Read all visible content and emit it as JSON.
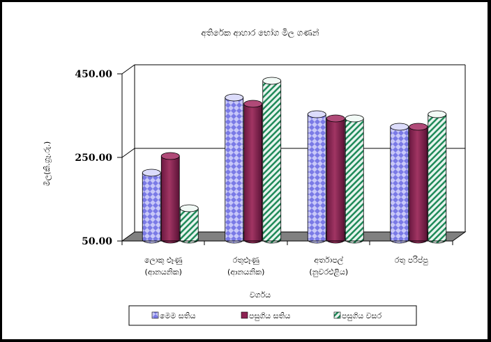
{
  "chart_data": {
    "type": "bar",
    "title": "අතිරේක ආහාර භෝග මිල ගණන්",
    "xlabel": "වර්ගය",
    "ylabel": "මිල(කි.ග්‍රෑ.රු.)",
    "ylim": [
      50,
      450
    ],
    "yticks": [
      "450.00",
      "250.00",
      "50.00"
    ],
    "grid": true,
    "legend_position": "bottom",
    "categories": [
      [
        "ලොකු ළූණු",
        "(ආනයනික)"
      ],
      [
        "රතුළූණු",
        "(ආනයනික)"
      ],
      [
        "අර්තාපල්",
        "(නුවරඑළිය)"
      ],
      [
        "රතු පරිප්පු"
      ]
    ],
    "series": [
      {
        "name": "මෙම සතිය",
        "values": [
          210,
          390,
          350,
          320
        ]
      },
      {
        "name": "පසුගිය සතිය",
        "values": [
          250,
          375,
          340,
          320
        ]
      },
      {
        "name": "පසුගිය වසර",
        "values": [
          125,
          430,
          340,
          350
        ]
      }
    ],
    "colors": {
      "series1_fill": "#c8c8f8",
      "series1_pattern": "#7a7ae6",
      "series2_fill": "#8c2252",
      "series3_fill": "#e7f4ee",
      "series3_pattern": "#1f8a59",
      "floor": "#808080"
    }
  }
}
